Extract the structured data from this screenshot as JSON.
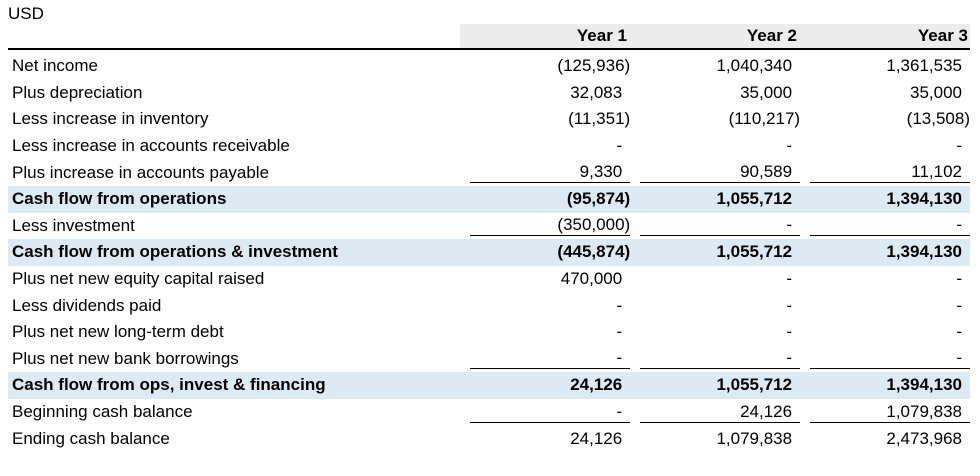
{
  "unit_label": "USD",
  "columns": [
    "Year 1",
    "Year 2",
    "Year 3"
  ],
  "rows": [
    {
      "label": "Net income",
      "values": [
        "(125,936)",
        "1,040,340",
        "1,361,535"
      ],
      "total": false,
      "underline": false
    },
    {
      "label": "Plus depreciation",
      "values": [
        "32,083",
        "35,000",
        "35,000"
      ],
      "total": false,
      "underline": false
    },
    {
      "label": "Less increase in inventory",
      "values": [
        "(11,351)",
        "(110,217)",
        "(13,508)"
      ],
      "total": false,
      "underline": false
    },
    {
      "label": "Less increase in accounts receivable",
      "values": [
        "-",
        "-",
        "-"
      ],
      "total": false,
      "underline": false
    },
    {
      "label": "Plus increase in accounts payable",
      "values": [
        "9,330",
        "90,589",
        "11,102"
      ],
      "total": false,
      "underline": true
    },
    {
      "label": "Cash flow from operations",
      "values": [
        "(95,874)",
        "1,055,712",
        "1,394,130"
      ],
      "total": true,
      "underline": false
    },
    {
      "label": "Less investment",
      "values": [
        "(350,000)",
        "-",
        "-"
      ],
      "total": false,
      "underline": true
    },
    {
      "label": "Cash flow from operations & investment",
      "values": [
        "(445,874)",
        "1,055,712",
        "1,394,130"
      ],
      "total": true,
      "underline": false
    },
    {
      "label": "Plus net new equity capital raised",
      "values": [
        "470,000",
        "-",
        "-"
      ],
      "total": false,
      "underline": false
    },
    {
      "label": "Less dividends paid",
      "values": [
        "-",
        "-",
        "-"
      ],
      "total": false,
      "underline": false
    },
    {
      "label": "Plus net new long-term debt",
      "values": [
        "-",
        "-",
        "-"
      ],
      "total": false,
      "underline": false
    },
    {
      "label": "Plus net new bank borrowings",
      "values": [
        "-",
        "-",
        "-"
      ],
      "total": false,
      "underline": true
    },
    {
      "label": "Cash flow from ops, invest & financing",
      "values": [
        "24,126",
        "1,055,712",
        "1,394,130"
      ],
      "total": true,
      "underline": false
    },
    {
      "label": "Beginning cash balance",
      "values": [
        "-",
        "24,126",
        "1,079,838"
      ],
      "total": false,
      "underline": true
    },
    {
      "label": "Ending cash balance",
      "values": [
        "24,126",
        "1,079,838",
        "2,473,968"
      ],
      "total": false,
      "underline": false
    }
  ],
  "colors": {
    "total_row_bg": "#dde9f3",
    "header_bg": "#ececec"
  }
}
